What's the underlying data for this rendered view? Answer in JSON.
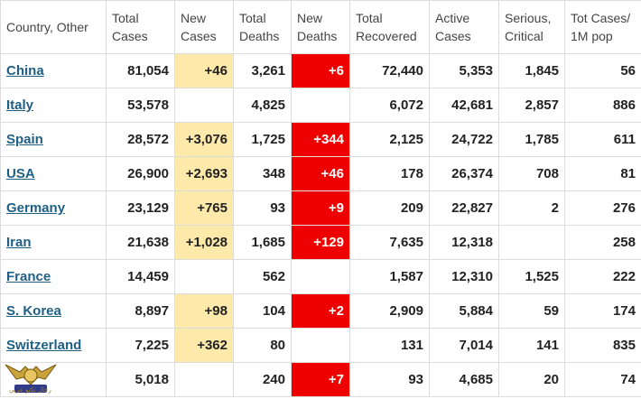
{
  "headers": {
    "country": "Country, Other",
    "total_cases": "Total Cases",
    "new_cases": "New Cases",
    "total_deaths": "Total Deaths",
    "new_deaths": "New Deaths",
    "total_recovered": "Total Recovered",
    "active_cases": "Active Cases",
    "serious_critical": "Serious, Critical",
    "tot_cases_1m": "Tot Cases/ 1M pop"
  },
  "rows": [
    {
      "country": "China",
      "total_cases": "81,054",
      "new_cases": "+46",
      "total_deaths": "3,261",
      "new_deaths": "+6",
      "total_recovered": "72,440",
      "active_cases": "5,353",
      "serious_critical": "1,845",
      "tot_cases_1m": "56"
    },
    {
      "country": "Italy",
      "total_cases": "53,578",
      "new_cases": "",
      "total_deaths": "4,825",
      "new_deaths": "",
      "total_recovered": "6,072",
      "active_cases": "42,681",
      "serious_critical": "2,857",
      "tot_cases_1m": "886"
    },
    {
      "country": "Spain",
      "total_cases": "28,572",
      "new_cases": "+3,076",
      "total_deaths": "1,725",
      "new_deaths": "+344",
      "total_recovered": "2,125",
      "active_cases": "24,722",
      "serious_critical": "1,785",
      "tot_cases_1m": "611"
    },
    {
      "country": "USA",
      "total_cases": "26,900",
      "new_cases": "+2,693",
      "total_deaths": "348",
      "new_deaths": "+46",
      "total_recovered": "178",
      "active_cases": "26,374",
      "serious_critical": "708",
      "tot_cases_1m": "81"
    },
    {
      "country": "Germany",
      "total_cases": "23,129",
      "new_cases": "+765",
      "total_deaths": "93",
      "new_deaths": "+9",
      "total_recovered": "209",
      "active_cases": "22,827",
      "serious_critical": "2",
      "tot_cases_1m": "276"
    },
    {
      "country": "Iran",
      "total_cases": "21,638",
      "new_cases": "+1,028",
      "total_deaths": "1,685",
      "new_deaths": "+129",
      "total_recovered": "7,635",
      "active_cases": "12,318",
      "serious_critical": "",
      "tot_cases_1m": "258"
    },
    {
      "country": "France",
      "total_cases": "14,459",
      "new_cases": "",
      "total_deaths": "562",
      "new_deaths": "",
      "total_recovered": "1,587",
      "active_cases": "12,310",
      "serious_critical": "1,525",
      "tot_cases_1m": "222"
    },
    {
      "country": "S. Korea",
      "total_cases": "8,897",
      "new_cases": "+98",
      "total_deaths": "104",
      "new_deaths": "+2",
      "total_recovered": "2,909",
      "active_cases": "5,884",
      "serious_critical": "59",
      "tot_cases_1m": "174"
    },
    {
      "country": "Switzerland",
      "total_cases": "7,225",
      "new_cases": "+362",
      "total_deaths": "80",
      "new_deaths": "",
      "total_recovered": "131",
      "active_cases": "7,014",
      "serious_critical": "141",
      "tot_cases_1m": "835"
    },
    {
      "country": "",
      "total_cases": "5,018",
      "new_cases": "",
      "total_deaths": "240",
      "new_deaths": "+7",
      "total_recovered": "93",
      "active_cases": "4,685",
      "serious_critical": "20",
      "tot_cases_1m": "74"
    }
  ],
  "colors": {
    "new_cases_highlight": "#fde9a9",
    "new_deaths_highlight": "#ee0000",
    "country_link": "#1f5f86"
  },
  "watermark": {
    "text": "رجال تكنو عربي",
    "icon": "eagle-crest-logo-icon"
  }
}
